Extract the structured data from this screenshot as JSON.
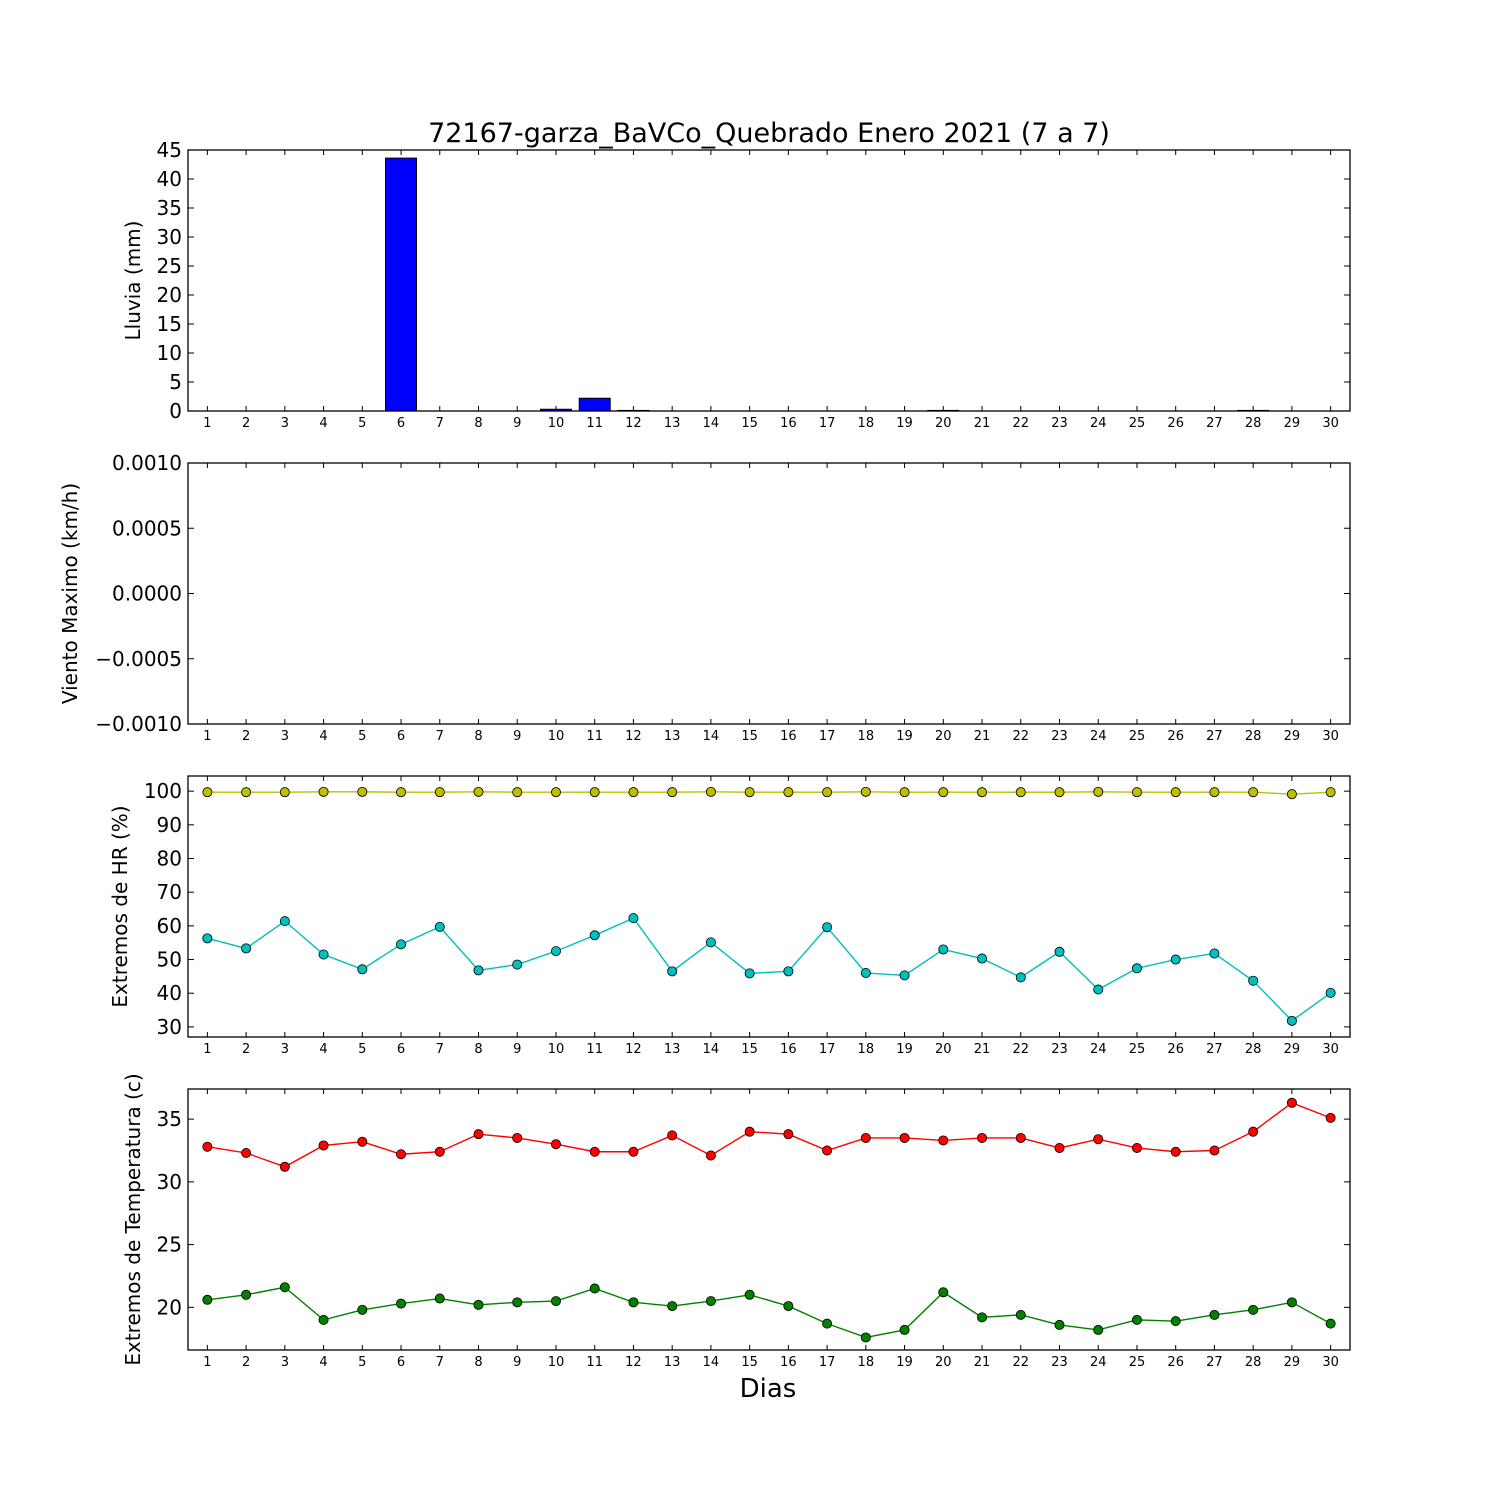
{
  "figure": {
    "title": "72167-garza_BaVCo_Quebrado Enero 2021  (7 a 7)",
    "xlabel": "Dias"
  },
  "colors": {
    "rain_bar": "#0000ff",
    "hr_max": "#bfbf00",
    "hr_min": "#00bfbf",
    "temp_max": "#ff0000",
    "temp_min": "#008000"
  },
  "chart_data": [
    {
      "type": "bar",
      "ylabel": "Lluvia (mm)",
      "ylim": [
        0,
        45
      ],
      "yticks": [
        "0",
        "5",
        "10",
        "15",
        "20",
        "25",
        "30",
        "35",
        "40",
        "45"
      ],
      "categories": [
        "1",
        "2",
        "3",
        "4",
        "5",
        "6",
        "7",
        "8",
        "9",
        "10",
        "11",
        "12",
        "13",
        "14",
        "15",
        "16",
        "17",
        "18",
        "19",
        "20",
        "21",
        "22",
        "23",
        "24",
        "25",
        "26",
        "27",
        "28",
        "29",
        "30"
      ],
      "values": [
        0,
        0,
        0,
        0,
        0,
        43.6,
        0,
        0,
        0,
        0.3,
        2.2,
        0.1,
        0,
        0,
        0,
        0,
        0,
        0,
        0,
        0.1,
        0,
        0,
        0,
        0,
        0,
        0,
        0,
        0.1,
        0,
        0
      ]
    },
    {
      "type": "line",
      "ylabel": "Viento Maximo (km/h)",
      "ylim": [
        -0.001,
        0.001
      ],
      "yticks": [
        "0.0010",
        "0.0005",
        "0.0000",
        "−0.0005",
        "−0.0010"
      ],
      "categories": [
        "1",
        "2",
        "3",
        "4",
        "5",
        "6",
        "7",
        "8",
        "9",
        "10",
        "11",
        "12",
        "13",
        "14",
        "15",
        "16",
        "17",
        "18",
        "19",
        "20",
        "21",
        "22",
        "23",
        "24",
        "25",
        "26",
        "27",
        "28",
        "29",
        "30"
      ],
      "series": []
    },
    {
      "type": "line",
      "ylabel": "Extremos de HR (%)",
      "ylim": [
        27,
        104.5
      ],
      "yticks": [
        "30",
        "40",
        "50",
        "60",
        "70",
        "80",
        "90",
        "100"
      ],
      "categories": [
        "1",
        "2",
        "3",
        "4",
        "5",
        "6",
        "7",
        "8",
        "9",
        "10",
        "11",
        "12",
        "13",
        "14",
        "15",
        "16",
        "17",
        "18",
        "19",
        "20",
        "21",
        "22",
        "23",
        "24",
        "25",
        "26",
        "27",
        "28",
        "29",
        "30"
      ],
      "series": [
        {
          "values": [
            99.7,
            99.7,
            99.7,
            99.8,
            99.8,
            99.7,
            99.7,
            99.8,
            99.7,
            99.7,
            99.7,
            99.7,
            99.7,
            99.8,
            99.7,
            99.7,
            99.7,
            99.8,
            99.7,
            99.7,
            99.7,
            99.7,
            99.7,
            99.8,
            99.7,
            99.7,
            99.7,
            99.7,
            99.1,
            99.7
          ]
        },
        {
          "values": [
            56.3,
            53.3,
            61.4,
            51.5,
            47.1,
            54.5,
            59.7,
            46.8,
            48.5,
            52.5,
            57.2,
            62.3,
            46.5,
            55.1,
            45.9,
            46.5,
            59.6,
            46.0,
            45.3,
            53.0,
            50.3,
            44.7,
            52.3,
            41.1,
            47.4,
            50.0,
            51.8,
            43.7,
            31.8,
            40.1
          ]
        }
      ]
    },
    {
      "type": "line",
      "ylabel": "Extremos de Temperatura (c)",
      "ylim": [
        16.6,
        37.4
      ],
      "yticks": [
        "20",
        "25",
        "30",
        "35"
      ],
      "categories": [
        "1",
        "2",
        "3",
        "4",
        "5",
        "6",
        "7",
        "8",
        "9",
        "10",
        "11",
        "12",
        "13",
        "14",
        "15",
        "16",
        "17",
        "18",
        "19",
        "20",
        "21",
        "22",
        "23",
        "24",
        "25",
        "26",
        "27",
        "28",
        "29",
        "30"
      ],
      "series": [
        {
          "values": [
            32.8,
            32.3,
            31.2,
            32.9,
            33.2,
            32.2,
            32.4,
            33.8,
            33.5,
            33.0,
            32.4,
            32.4,
            33.7,
            32.1,
            34.0,
            33.8,
            32.5,
            33.5,
            33.5,
            33.3,
            33.5,
            33.5,
            32.7,
            33.4,
            32.7,
            32.4,
            32.5,
            34.0,
            36.3,
            35.1
          ]
        },
        {
          "values": [
            20.6,
            21.0,
            21.6,
            19.0,
            19.8,
            20.3,
            20.7,
            20.2,
            20.4,
            20.5,
            21.5,
            20.4,
            20.1,
            20.5,
            21.0,
            20.1,
            18.7,
            17.6,
            18.2,
            21.2,
            19.2,
            19.4,
            18.6,
            18.2,
            19.0,
            18.9,
            19.4,
            19.8,
            20.4,
            18.7
          ]
        }
      ]
    }
  ]
}
